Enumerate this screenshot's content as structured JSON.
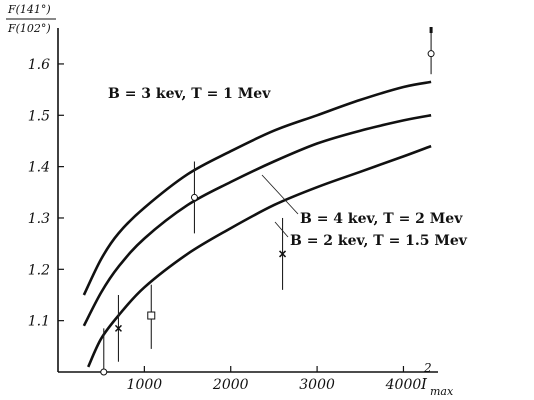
{
  "chart_data": {
    "type": "line",
    "title": "",
    "ylabel": {
      "numerator": "F(141°)",
      "denominator": "F(102°)"
    },
    "xlabel": {
      "symbol": "I",
      "subscript": "max",
      "superscript": "2"
    },
    "xlim": [
      0,
      4400
    ],
    "ylim": [
      1.0,
      1.67
    ],
    "x_ticks": [
      {
        "value": 1000,
        "label": "1000"
      },
      {
        "value": 2000,
        "label": "2000"
      },
      {
        "value": 3000,
        "label": "3000"
      },
      {
        "value": 4000,
        "label": "4000"
      }
    ],
    "y_ticks": [
      {
        "value": 1.1,
        "label": "1.1"
      },
      {
        "value": 1.2,
        "label": "1.2"
      },
      {
        "value": 1.3,
        "label": "1.3"
      },
      {
        "value": 1.4,
        "label": "1.4"
      },
      {
        "value": 1.5,
        "label": "1.5"
      },
      {
        "value": 1.6,
        "label": "1.6"
      }
    ],
    "grid": false,
    "legend": "none",
    "series": [
      {
        "name": "B = 3 kev, T = 1 Mev",
        "x": [
          300,
          500,
          700,
          1000,
          1500,
          2000,
          2500,
          3000,
          3500,
          4000,
          4320
        ],
        "y": [
          1.15,
          1.22,
          1.27,
          1.32,
          1.385,
          1.43,
          1.47,
          1.5,
          1.53,
          1.555,
          1.565
        ]
      },
      {
        "name": "B = 4 kev, T = 2 Mev",
        "x": [
          300,
          500,
          700,
          1000,
          1500,
          2000,
          2500,
          3000,
          3500,
          4000,
          4320
        ],
        "y": [
          1.09,
          1.155,
          1.205,
          1.26,
          1.325,
          1.37,
          1.41,
          1.445,
          1.47,
          1.49,
          1.5
        ]
      },
      {
        "name": "B = 2 kev, T = 1.5 Mev",
        "x": [
          350,
          500,
          700,
          1000,
          1500,
          2000,
          2500,
          3000,
          3500,
          4000,
          4320
        ],
        "y": [
          1.01,
          1.065,
          1.11,
          1.165,
          1.23,
          1.28,
          1.325,
          1.36,
          1.39,
          1.42,
          1.44
        ]
      }
    ],
    "measurements": [
      {
        "x": 530,
        "y": 1.0,
        "low": 1.0,
        "high": 1.085,
        "marker": "circle"
      },
      {
        "x": 700,
        "y": 1.085,
        "low": 1.02,
        "high": 1.15,
        "marker": "cross"
      },
      {
        "x": 1080,
        "y": 1.11,
        "low": 1.045,
        "high": 1.17,
        "marker": "square"
      },
      {
        "x": 1580,
        "y": 1.34,
        "low": 1.27,
        "high": 1.41,
        "marker": "circle"
      },
      {
        "x": 2600,
        "y": 1.23,
        "low": 1.16,
        "high": 1.3,
        "marker": "cross"
      },
      {
        "x": 4320,
        "y": 1.62,
        "low": 1.58,
        "high": 1.67,
        "marker": "circle"
      }
    ]
  }
}
